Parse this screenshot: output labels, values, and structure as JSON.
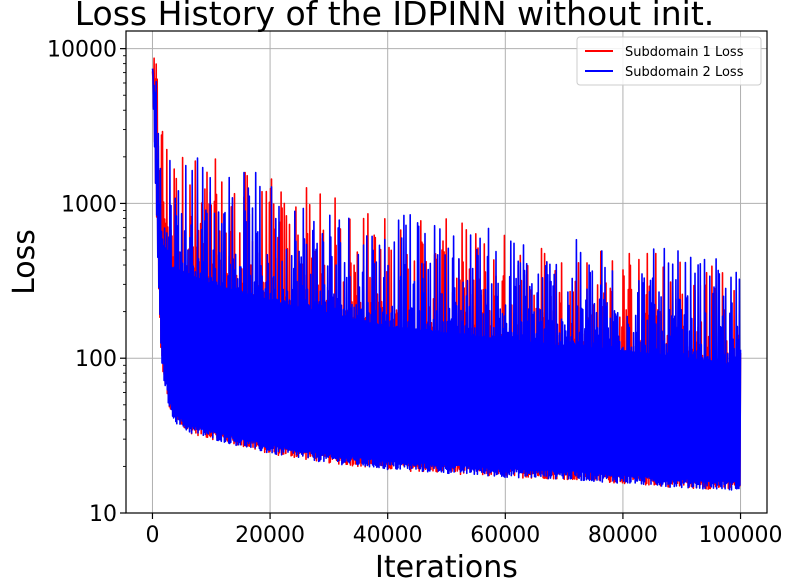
{
  "chart_data": {
    "type": "line",
    "title": "Loss History of the IDPINN without init.",
    "xlabel": "Iterations",
    "ylabel": "Loss",
    "xlim": [
      -4500,
      104500
    ],
    "ylim": [
      10,
      13000
    ],
    "yscale": "log",
    "grid": true,
    "legend_position": "top-right",
    "x_ticks": [
      0,
      20000,
      40000,
      60000,
      80000,
      100000
    ],
    "x_tick_labels": [
      "0",
      "20000",
      "40000",
      "60000",
      "80000",
      "100000"
    ],
    "y_ticks": [
      10,
      100,
      1000,
      10000
    ],
    "y_tick_labels": [
      "10",
      "100",
      "1000",
      "10000"
    ],
    "series": [
      {
        "name": "Subdomain 1 Loss",
        "color": "#ff0000",
        "envelope": {
          "x": [
            0,
            500,
            1000,
            1500,
            2000,
            3000,
            4000,
            6000,
            10000,
            20000,
            30000,
            40000,
            50000,
            60000,
            70000,
            80000,
            90000,
            100000
          ],
          "upper": [
            7000,
            10500,
            9500,
            6000,
            4200,
            3000,
            2600,
            2400,
            2000,
            1500,
            1200,
            900,
            800,
            700,
            600,
            550,
            500,
            400
          ],
          "lower": [
            6500,
            1500,
            300,
            100,
            70,
            45,
            38,
            33,
            30,
            24,
            21,
            19,
            18,
            17,
            16.5,
            15.5,
            14.5,
            14
          ]
        }
      },
      {
        "name": "Subdomain 2 Loss",
        "color": "#0000ff",
        "envelope": {
          "x": [
            0,
            500,
            1000,
            1500,
            2000,
            3000,
            4000,
            6000,
            10000,
            20000,
            30000,
            40000,
            50000,
            60000,
            70000,
            80000,
            90000,
            100000
          ],
          "upper": [
            7000,
            10500,
            3500,
            2500,
            2300,
            2200,
            2500,
            2400,
            2000,
            1500,
            1200,
            900,
            800,
            700,
            600,
            550,
            500,
            400
          ],
          "lower": [
            6500,
            1500,
            300,
            100,
            70,
            45,
            38,
            33,
            30,
            24,
            21,
            19,
            18,
            17,
            16.5,
            15.5,
            14.5,
            14
          ]
        }
      }
    ]
  }
}
